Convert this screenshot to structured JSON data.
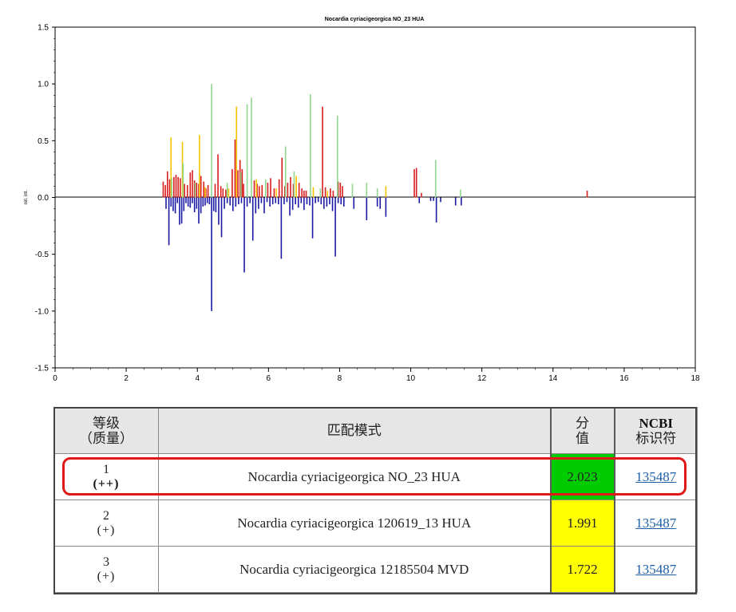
{
  "chart_data": {
    "type": "bar",
    "title": "Nocardia cyriacigeorgica NO_23 HUA",
    "ylabel": "rel. int.",
    "xlabel": "",
    "xlim": [
      0,
      18
    ],
    "ylim": [
      -1.5,
      1.5
    ],
    "x_ticks": [
      0,
      2,
      4,
      6,
      8,
      10,
      12,
      14,
      16,
      18
    ],
    "y_ticks": [
      1.5,
      1.0,
      0.5,
      0.0,
      -0.5,
      -1.0,
      -1.5
    ],
    "y_tick_labels": [
      "1.5",
      "1.0",
      "0.5",
      "0.0",
      "-0.5",
      "-1.0",
      "-1.5"
    ],
    "grid": false,
    "colors": {
      "green": "#8fd68f",
      "red": "#d91c1c",
      "yellow": "#f5c400",
      "blue": "#1a1aa6"
    },
    "series": [
      {
        "name": "",
        "color": "red",
        "x": [
          3.04,
          3.1,
          3.16,
          3.22,
          3.34,
          3.4,
          3.46,
          3.52,
          3.64,
          3.72,
          3.8,
          3.86,
          3.92,
          3.98,
          4.04,
          4.1,
          4.18,
          4.24,
          4.3,
          4.5,
          4.58,
          4.66,
          4.72,
          4.8,
          4.98,
          5.06,
          5.14,
          5.2,
          5.26,
          5.3,
          5.6,
          5.68,
          5.74,
          5.82,
          5.98,
          6.06,
          6.16,
          6.3,
          6.38,
          6.46,
          6.54,
          6.62,
          6.7,
          6.86,
          6.94,
          7.0,
          7.06,
          7.52,
          7.6,
          7.74,
          7.82,
          7.96,
          8.02,
          8.08,
          10.1,
          10.16,
          10.3,
          14.96
        ],
        "y": [
          0.14,
          0.11,
          0.23,
          0.16,
          0.18,
          0.2,
          0.18,
          0.17,
          0.12,
          0.11,
          0.22,
          0.24,
          0.15,
          0.13,
          0.12,
          0.19,
          0.14,
          0.08,
          0.11,
          0.12,
          0.38,
          0.1,
          0.08,
          0.07,
          0.25,
          0.51,
          0.24,
          0.33,
          0.25,
          0.12,
          0.15,
          0.12,
          0.1,
          0.11,
          0.13,
          0.17,
          0.08,
          0.16,
          0.35,
          0.1,
          0.13,
          0.18,
          0.12,
          0.13,
          0.08,
          0.06,
          0.06,
          0.8,
          0.09,
          0.08,
          0.06,
          0.14,
          0.13,
          0.1,
          0.25,
          0.26,
          0.04,
          0.06
        ]
      },
      {
        "name": "",
        "color": "yellow",
        "x": [
          3.26,
          3.58,
          4.06,
          4.22,
          4.88,
          5.1,
          5.66,
          6.22,
          6.78,
          7.26,
          7.66,
          9.3
        ],
        "y": [
          0.53,
          0.49,
          0.55,
          0.09,
          0.08,
          0.8,
          0.16,
          0.08,
          0.19,
          0.09,
          0.06,
          0.1
        ]
      },
      {
        "name": "",
        "color": "green",
        "x": [
          3.28,
          3.6,
          3.94,
          4.4,
          4.84,
          5.22,
          5.4,
          5.52,
          5.92,
          6.48,
          6.72,
          7.18,
          7.46,
          7.94,
          8.36,
          8.76,
          9.06,
          10.7,
          11.4
        ],
        "y": [
          0.17,
          0.3,
          0.13,
          1.0,
          0.13,
          0.22,
          0.82,
          0.88,
          0.16,
          0.45,
          0.23,
          0.91,
          0.08,
          0.72,
          0.12,
          0.13,
          0.08,
          0.33,
          0.07
        ]
      },
      {
        "name": "",
        "color": "blue",
        "x": [
          3.12,
          3.2,
          3.26,
          3.32,
          3.38,
          3.44,
          3.5,
          3.56,
          3.62,
          3.68,
          3.74,
          3.8,
          3.86,
          3.92,
          3.98,
          4.04,
          4.1,
          4.16,
          4.22,
          4.28,
          4.34,
          4.4,
          4.46,
          4.52,
          4.6,
          4.68,
          4.76,
          4.84,
          4.92,
          5.0,
          5.08,
          5.16,
          5.24,
          5.32,
          5.4,
          5.48,
          5.56,
          5.64,
          5.72,
          5.8,
          5.88,
          5.96,
          6.04,
          6.12,
          6.2,
          6.28,
          6.36,
          6.44,
          6.52,
          6.6,
          6.68,
          6.76,
          6.84,
          6.92,
          7.0,
          7.08,
          7.16,
          7.24,
          7.32,
          7.4,
          7.48,
          7.56,
          7.64,
          7.72,
          7.8,
          7.88,
          7.96,
          8.04,
          8.12,
          8.4,
          8.76,
          9.06,
          9.14,
          9.3,
          10.24,
          10.56,
          10.64,
          10.72,
          10.84,
          11.26,
          11.42
        ],
        "y": [
          -0.1,
          -0.42,
          -0.08,
          -0.12,
          -0.14,
          -0.05,
          -0.24,
          -0.23,
          -0.12,
          -0.05,
          -0.08,
          -0.09,
          -0.05,
          -0.13,
          -0.1,
          -0.23,
          -0.14,
          -0.08,
          -0.07,
          -0.05,
          -0.06,
          -1.0,
          -0.12,
          -0.13,
          -0.24,
          -0.35,
          -0.1,
          -0.05,
          -0.07,
          -0.12,
          -0.08,
          -0.06,
          -0.05,
          -0.66,
          -0.08,
          -0.05,
          -0.38,
          -0.14,
          -0.1,
          -0.05,
          -0.14,
          -0.04,
          -0.08,
          -0.06,
          -0.05,
          -0.06,
          -0.54,
          -0.06,
          -0.04,
          -0.16,
          -0.11,
          -0.06,
          -0.09,
          -0.05,
          -0.11,
          -0.06,
          -0.07,
          -0.36,
          -0.05,
          -0.04,
          -0.06,
          -0.1,
          -0.08,
          -0.06,
          -0.12,
          -0.52,
          -0.05,
          -0.06,
          -0.08,
          -0.1,
          -0.2,
          -0.08,
          -0.1,
          -0.17,
          -0.05,
          -0.03,
          -0.03,
          -0.22,
          -0.04,
          -0.07,
          -0.07
        ]
      }
    ]
  },
  "table": {
    "headers": {
      "rank_line1": "等级",
      "rank_line2": "（质量）",
      "pattern": "匹配模式",
      "score_line1": "分",
      "score_line2": "值",
      "ncbi_line1": "NCBI",
      "ncbi_line2": "标识符"
    },
    "rows": [
      {
        "rank": "1",
        "quality": "(++)",
        "pattern": "Nocardia cyriacigeorgica NO_23 HUA",
        "score": "2.023",
        "score_color": "#00cc00",
        "ncbi": "135487"
      },
      {
        "rank": "2",
        "quality": "(+)",
        "pattern": "Nocardia cyriacigeorgica 120619_13 HUA",
        "score": "1.991",
        "score_color": "#ffff00",
        "ncbi": "135487"
      },
      {
        "rank": "3",
        "quality": "(+)",
        "pattern": "Nocardia cyriacigeorgica 12185504 MVD",
        "score": "1.722",
        "score_color": "#ffff00",
        "ncbi": "135487"
      }
    ]
  },
  "highlight_color": "#e01818"
}
